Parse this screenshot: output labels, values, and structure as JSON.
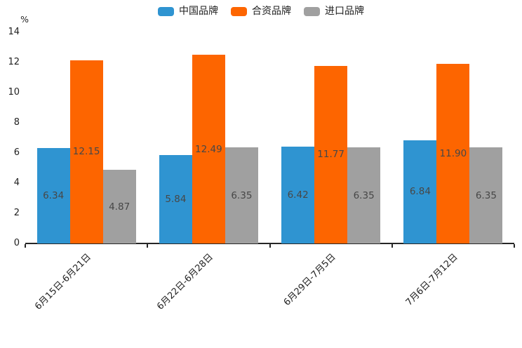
{
  "chart_data": {
    "type": "bar",
    "unit": "%",
    "categories": [
      "6月15日-6月21日",
      "6月22日-6月28日",
      "6月29日-7月5日",
      "7月6日-7月12日"
    ],
    "series": [
      {
        "name": "中国品牌",
        "color": "#2F94D1",
        "values": [
          6.34,
          5.84,
          6.42,
          6.84
        ]
      },
      {
        "name": "合资品牌",
        "color": "#FD6500",
        "values": [
          12.15,
          12.49,
          11.77,
          11.9
        ]
      },
      {
        "name": "进口品牌",
        "color": "#A0A0A0",
        "values": [
          4.87,
          6.35,
          6.35,
          6.35
        ]
      }
    ],
    "title": "",
    "xlabel": "",
    "ylabel": "%",
    "ylim": [
      0,
      14
    ],
    "yticks": [
      0,
      2,
      4,
      6,
      8,
      10,
      12,
      14
    ],
    "grid": false,
    "legend_position": "top",
    "value_label_decimals": 2,
    "value_labels_inside_bars": true,
    "x_label_rotation_deg": 45
  },
  "colors": {
    "axis_line": "#262626",
    "tick_text": "#1f1f1f",
    "value_label_text": "#474747",
    "background": "#ffffff"
  }
}
